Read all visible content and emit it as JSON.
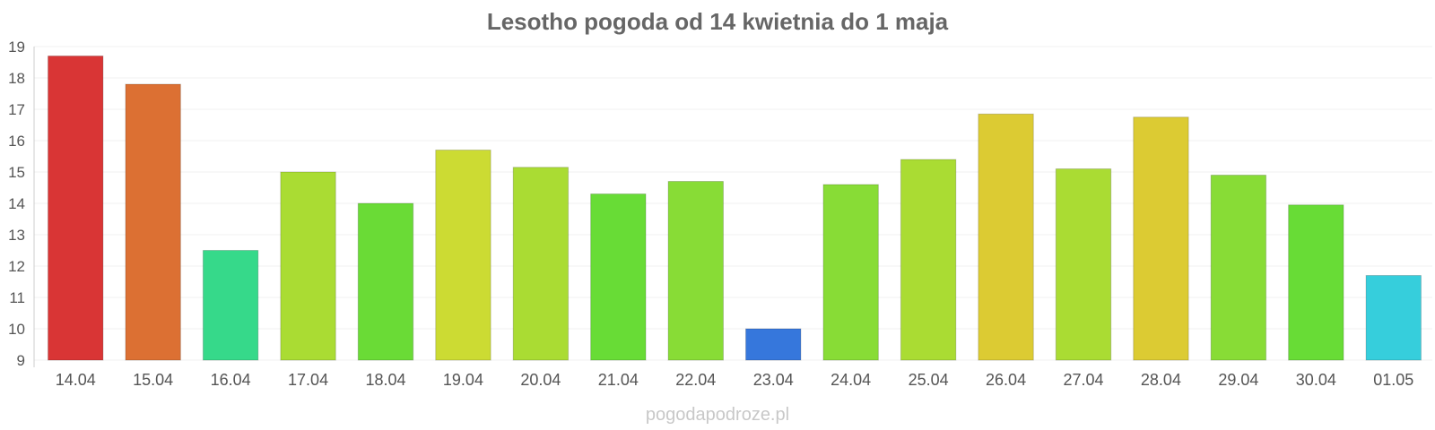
{
  "chart_data": {
    "type": "bar",
    "title": "Lesotho pogoda od 14 kwietnia do 1 maja",
    "categories": [
      "14.04",
      "15.04",
      "16.04",
      "17.04",
      "18.04",
      "19.04",
      "20.04",
      "21.04",
      "22.04",
      "23.04",
      "24.04",
      "25.04",
      "26.04",
      "27.04",
      "28.04",
      "29.04",
      "30.04",
      "01.05"
    ],
    "values": [
      18.7,
      17.8,
      12.5,
      15.0,
      14.0,
      15.7,
      15.15,
      14.3,
      14.7,
      10.0,
      14.6,
      15.4,
      16.85,
      15.1,
      16.75,
      14.9,
      13.95,
      11.7
    ],
    "colors": [
      "#d93535",
      "#dc7033",
      "#36d98a",
      "#aadc33",
      "#6adb36",
      "#ccdb33",
      "#aadc33",
      "#68dc36",
      "#88dc36",
      "#3677dc",
      "#88dc36",
      "#aadc33",
      "#dccb33",
      "#aadc33",
      "#dccb33",
      "#88dc36",
      "#68dc36",
      "#36cedc"
    ],
    "yticks": [
      9,
      10,
      11,
      12,
      13,
      14,
      15,
      16,
      17,
      18,
      19
    ],
    "ylim": [
      9,
      19
    ],
    "grid": true,
    "xlabel": "",
    "ylabel": ""
  },
  "footer": {
    "source": "pogodapodroze.pl"
  }
}
